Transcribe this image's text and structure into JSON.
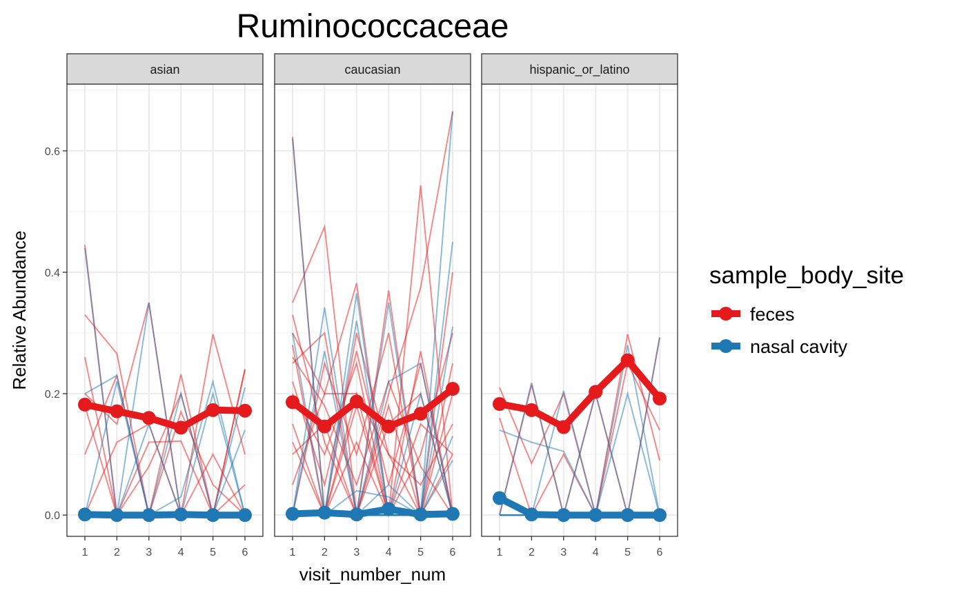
{
  "chart_data": {
    "type": "line",
    "title": "Ruminococcaceae",
    "xlabel": "visit_number_num",
    "ylabel": "Relative Abundance",
    "x": [
      1,
      2,
      3,
      4,
      5,
      6
    ],
    "x_ticks": [
      "1",
      "2",
      "3",
      "4",
      "5",
      "6"
    ],
    "ylim": [
      -0.035,
      0.71
    ],
    "y_ticks": [
      0.0,
      0.2,
      0.4,
      0.6
    ],
    "y_tick_labels": [
      "0.0",
      "0.2",
      "0.4",
      "0.6"
    ],
    "grid": true,
    "legend": {
      "title": "sample_body_site",
      "position": "right",
      "entries": [
        {
          "label": "feces",
          "color": "#E41A1C"
        },
        {
          "label": "nasal cavity",
          "color": "#1F78B4"
        }
      ]
    },
    "colors": {
      "feces": "#E41A1C",
      "nasal cavity": "#1F78B4"
    },
    "panels": [
      {
        "facet": "asian",
        "series": [
          {
            "name": "feces",
            "values": [
              0.182,
              0.171,
              0.16,
              0.144,
              0.173,
              0.172
            ]
          },
          {
            "name": "nasal cavity",
            "values": [
              0.001,
              0.0,
              0.0,
              0.001,
              0.0,
              0.0
            ]
          }
        ],
        "subject_lines": {
          "feces": [
            [
              0.445,
              0.0,
              0.12,
              0.122,
              0.0,
              0.24
            ],
            [
              0.33,
              0.266,
              0.0,
              0.232,
              0.0,
              0.0
            ],
            [
              0.2,
              0.15,
              0.35,
              0.0,
              0.298,
              0.1
            ],
            [
              0.18,
              0.0,
              0.0,
              0.17,
              0.05,
              0.0
            ],
            [
              0.1,
              0.23,
              0.0,
              0.0,
              0.0,
              0.24
            ],
            [
              0.0,
              0.12,
              0.15,
              0.0,
              0.1,
              0.0
            ],
            [
              0.26,
              0.0,
              0.08,
              0.2,
              0.0,
              0.05
            ]
          ],
          "nasal cavity": [
            [
              0.44,
              0.0,
              0.0,
              0.0,
              0.2,
              0.0
            ],
            [
              0.2,
              0.23,
              0.0,
              0.0,
              0.0,
              0.0
            ],
            [
              0.0,
              0.0,
              0.35,
              0.0,
              0.0,
              0.0
            ],
            [
              0.0,
              0.0,
              0.0,
              0.2,
              0.0,
              0.0
            ],
            [
              0.0,
              0.0,
              0.0,
              0.03,
              0.22,
              0.0
            ],
            [
              0.0,
              0.22,
              0.0,
              0.0,
              0.0,
              0.21
            ],
            [
              0.0,
              0.0,
              0.15,
              0.0,
              0.0,
              0.0
            ],
            [
              0.0,
              0.0,
              0.0,
              0.0,
              0.0,
              0.14
            ]
          ]
        }
      },
      {
        "facet": "caucasian",
        "series": [
          {
            "name": "feces",
            "values": [
              0.186,
              0.146,
              0.187,
              0.146,
              0.167,
              0.208
            ]
          },
          {
            "name": "nasal cavity",
            "values": [
              0.002,
              0.004,
              0.001,
              0.01,
              0.001,
              0.002
            ]
          }
        ],
        "subject_lines": {
          "feces": [
            [
              0.623,
              0.0,
              0.2,
              0.0,
              0.0,
              0.1
            ],
            [
              0.35,
              0.475,
              0.0,
              0.37,
              0.0,
              0.0
            ],
            [
              0.3,
              0.2,
              0.382,
              0.0,
              0.543,
              0.0
            ],
            [
              0.25,
              0.3,
              0.0,
              0.2,
              0.375,
              0.665
            ],
            [
              0.2,
              0.1,
              0.25,
              0.0,
              0.27,
              0.0
            ],
            [
              0.15,
              0.0,
              0.3,
              0.1,
              0.0,
              0.2
            ],
            [
              0.0,
              0.25,
              0.1,
              0.3,
              0.0,
              0.4
            ],
            [
              0.1,
              0.15,
              0.0,
              0.15,
              0.2,
              0.0
            ],
            [
              0.28,
              0.0,
              0.12,
              0.0,
              0.1,
              0.3
            ],
            [
              0.05,
              0.2,
              0.2,
              0.1,
              0.05,
              0.15
            ],
            [
              0.22,
              0.05,
              0.27,
              0.05,
              0.25,
              0.0
            ],
            [
              0.33,
              0.12,
              0.0,
              0.18,
              0.0,
              0.25
            ],
            [
              0.12,
              0.0,
              0.18,
              0.0,
              0.15,
              0.1
            ],
            [
              0.26,
              0.18,
              0.05,
              0.22,
              0.08,
              0.0
            ]
          ],
          "nasal cavity": [
            [
              0.62,
              0.0,
              0.0,
              0.0,
              0.0,
              0.0
            ],
            [
              0.0,
              0.342,
              0.0,
              0.0,
              0.0,
              0.0
            ],
            [
              0.0,
              0.0,
              0.365,
              0.0,
              0.0,
              0.0
            ],
            [
              0.0,
              0.0,
              0.0,
              0.22,
              0.25,
              0.0
            ],
            [
              0.0,
              0.0,
              0.0,
              0.0,
              0.0,
              0.665
            ],
            [
              0.3,
              0.0,
              0.0,
              0.0,
              0.0,
              0.0
            ],
            [
              0.0,
              0.27,
              0.0,
              0.0,
              0.0,
              0.0
            ],
            [
              0.0,
              0.0,
              0.0,
              0.0,
              0.0,
              0.45
            ],
            [
              0.0,
              0.0,
              0.32,
              0.0,
              0.0,
              0.0
            ],
            [
              0.0,
              0.0,
              0.0,
              0.35,
              0.0,
              0.0
            ],
            [
              0.0,
              0.0,
              0.0,
              0.0,
              0.0,
              0.31
            ],
            [
              0.0,
              0.0,
              0.0,
              0.05,
              0.0,
              0.09
            ],
            [
              0.0,
              0.0,
              0.04,
              0.03,
              0.0,
              0.0
            ],
            [
              0.0,
              0.01,
              0.0,
              0.0,
              0.0,
              0.13
            ],
            [
              0.0,
              0.0,
              0.0,
              0.0,
              0.2,
              0.0
            ]
          ]
        }
      },
      {
        "facet": "hispanic_or_latino",
        "series": [
          {
            "name": "feces",
            "values": [
              0.183,
              0.173,
              0.145,
              0.203,
              0.255,
              0.192
            ]
          },
          {
            "name": "nasal cavity",
            "values": [
              0.028,
              0.001,
              0.0,
              0.0,
              0.0,
              0.0
            ]
          }
        ],
        "subject_lines": {
          "feces": [
            [
              0.21,
              0.085,
              0.2,
              0.0,
              0.298,
              0.09
            ],
            [
              0.0,
              0.215,
              0.0,
              0.2,
              0.0,
              0.292
            ],
            [
              0.16,
              0.0,
              0.1,
              0.0,
              0.25,
              0.14
            ]
          ],
          "nasal cavity": [
            [
              0.14,
              0.12,
              0.105,
              0.0,
              0.0,
              0.0
            ],
            [
              0.0,
              0.218,
              0.0,
              0.0,
              0.0,
              0.0
            ],
            [
              0.0,
              0.0,
              0.205,
              0.0,
              0.0,
              0.0
            ],
            [
              0.0,
              0.0,
              0.0,
              0.2,
              0.0,
              0.0
            ],
            [
              0.0,
              0.0,
              0.0,
              0.0,
              0.28,
              0.0
            ],
            [
              0.0,
              0.0,
              0.0,
              0.0,
              0.0,
              0.293
            ],
            [
              0.0,
              0.0,
              0.0,
              0.0,
              0.2,
              0.0
            ]
          ]
        }
      }
    ]
  }
}
